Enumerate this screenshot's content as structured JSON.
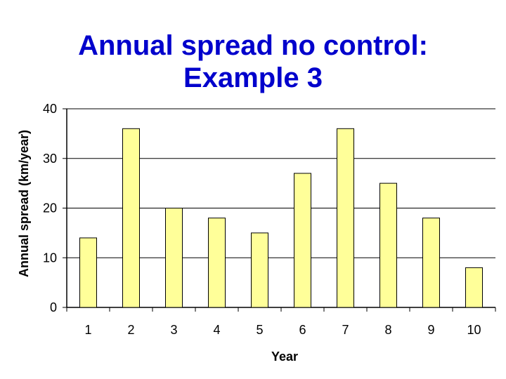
{
  "title_lines": [
    "Annual spread no control:",
    "Example 3"
  ],
  "colors": {
    "bar_fill": "#ffff99",
    "bar_stroke": "#000000",
    "title": "#0000cc"
  },
  "chart_data": {
    "type": "bar",
    "title": "Annual spread no control: Example 3",
    "xlabel": "Year",
    "ylabel": "Annual spread (km/year)",
    "categories": [
      "1",
      "2",
      "3",
      "4",
      "5",
      "6",
      "7",
      "8",
      "9",
      "10"
    ],
    "values": [
      14,
      36,
      20,
      18,
      15,
      27,
      36,
      25,
      18,
      8
    ],
    "ylim": [
      0,
      40
    ],
    "yticks": [
      0,
      10,
      20,
      30,
      40
    ],
    "grid": true,
    "legend": "none"
  }
}
